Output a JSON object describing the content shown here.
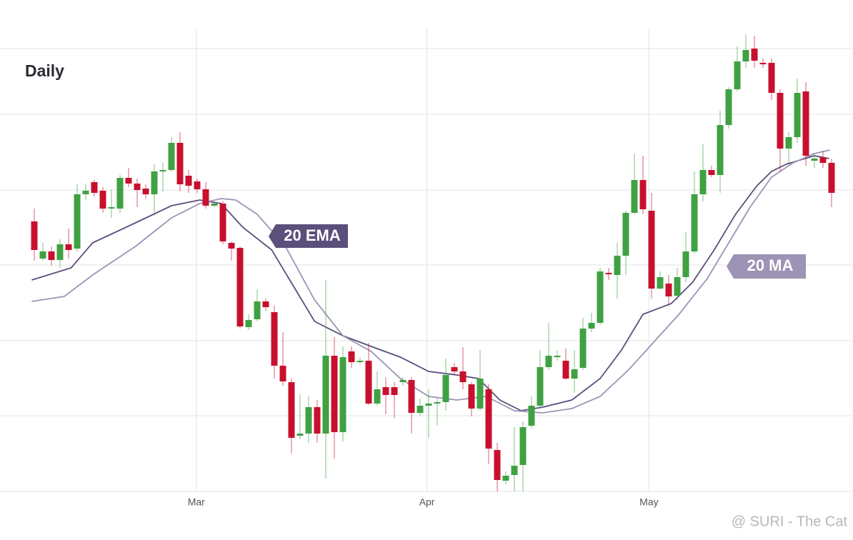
{
  "chart_data": {
    "type": "candlestick",
    "title": "Daily",
    "watermark": "@ SURI - The Cat",
    "up_color": "#3fa142",
    "down_color": "#c8102e",
    "x": [
      0,
      1,
      2,
      3,
      4,
      5,
      6,
      7,
      8,
      9,
      10,
      11,
      12,
      13,
      14,
      15,
      16,
      17,
      18,
      19,
      20,
      21,
      22,
      23,
      24,
      25,
      26,
      27,
      28,
      29,
      30,
      31,
      32,
      33,
      34,
      35,
      36,
      37,
      38,
      39,
      40,
      41,
      42,
      43,
      44,
      45,
      46,
      47,
      48,
      49,
      50,
      51,
      52,
      53,
      54,
      55,
      56,
      57,
      58,
      59,
      60,
      61,
      62,
      63,
      64,
      65,
      66,
      67,
      68,
      69,
      70,
      71,
      72,
      73,
      74,
      75,
      76,
      77,
      78,
      79,
      80,
      81,
      82,
      83,
      84,
      85,
      86,
      87,
      88,
      89,
      90,
      91,
      92,
      93
    ],
    "open": [
      378,
      326,
      336,
      324,
      346,
      340,
      416,
      433,
      421,
      396,
      396,
      439,
      431,
      424,
      416,
      448,
      450,
      488,
      442,
      434,
      423,
      400,
      403,
      348,
      341,
      230,
      241,
      266,
      251,
      176,
      153,
      78,
      81,
      118,
      81,
      190,
      83,
      196,
      181,
      183,
      123,
      146,
      146,
      153,
      156,
      110,
      120,
      123,
      125,
      174,
      168,
      150,
      116,
      143,
      58,
      15,
      23,
      37,
      92,
      120,
      174,
      188,
      183,
      158,
      173,
      228,
      236,
      306,
      303,
      330,
      390,
      436,
      393,
      284,
      291,
      274,
      300,
      336,
      416,
      450,
      443,
      513,
      563,
      602,
      620,
      600,
      600,
      558,
      480,
      496,
      560,
      463,
      468,
      460
    ],
    "high": [
      396,
      348,
      343,
      353,
      368,
      430,
      430,
      436,
      426,
      423,
      443,
      453,
      438,
      430,
      458,
      460,
      496,
      503,
      450,
      438,
      433,
      406,
      406,
      350,
      343,
      248,
      283,
      270,
      260,
      223,
      158,
      136,
      133,
      128,
      296,
      216,
      203,
      203,
      188,
      208,
      168,
      160,
      153,
      160,
      160,
      130,
      143,
      130,
      186,
      180,
      202,
      153,
      198,
      150,
      68,
      28,
      90,
      98,
      133,
      198,
      236,
      198,
      200,
      198,
      243,
      250,
      313,
      313,
      348,
      393,
      473,
      470,
      418,
      308,
      303,
      313,
      363,
      448,
      486,
      456,
      533,
      566,
      623,
      640,
      638,
      606,
      606,
      563,
      503,
      578,
      573,
      473,
      476,
      466
    ],
    "low": [
      323,
      323,
      316,
      313,
      326,
      336,
      408,
      413,
      390,
      383,
      390,
      426,
      398,
      410,
      386,
      420,
      448,
      420,
      418,
      418,
      396,
      398,
      346,
      323,
      228,
      226,
      238,
      253,
      158,
      148,
      53,
      73,
      68,
      68,
      18,
      46,
      70,
      173,
      178,
      121,
      120,
      108,
      103,
      148,
      81,
      106,
      75,
      93,
      113,
      163,
      143,
      105,
      113,
      38,
      0,
      10,
      0,
      0,
      88,
      116,
      170,
      183,
      156,
      138,
      170,
      223,
      233,
      296,
      270,
      303,
      388,
      388,
      270,
      283,
      260,
      268,
      293,
      333,
      406,
      440,
      418,
      508,
      560,
      593,
      593,
      593,
      548,
      448,
      460,
      488,
      456,
      453,
      453,
      398
    ],
    "close": [
      338,
      336,
      324,
      346,
      338,
      416,
      421,
      418,
      396,
      398,
      439,
      431,
      422,
      416,
      448,
      450,
      488,
      430,
      428,
      423,
      400,
      403,
      350,
      340,
      231,
      240,
      266,
      258,
      176,
      154,
      75,
      81,
      118,
      81,
      190,
      83,
      188,
      181,
      183,
      123,
      143,
      135,
      135,
      156,
      110,
      120,
      123,
      125,
      163,
      168,
      153,
      116,
      158,
      60,
      16,
      22,
      36,
      90,
      120,
      174,
      190,
      190,
      158,
      171,
      228,
      236,
      308,
      304,
      330,
      390,
      436,
      395,
      284,
      300,
      273,
      300,
      336,
      416,
      450,
      443,
      513,
      563,
      602,
      618,
      603,
      598,
      558,
      480,
      496,
      558,
      470,
      466,
      460,
      418
    ],
    "xlim": [
      -4,
      95.5
    ],
    "xticks": [
      {
        "value": 18.9,
        "label": "Mar"
      },
      {
        "value": 45.8,
        "label": "Apr"
      },
      {
        "value": 71.7,
        "label": "May"
      }
    ],
    "ylim": [
      0,
      648
    ],
    "yticks": [
      0,
      106,
      211,
      317,
      422,
      528,
      620
    ],
    "grid": true,
    "series": [
      {
        "name": "20 EMA",
        "color": "#5b4f7c",
        "x": [
          -0.3,
          4.3,
          6.8,
          11.8,
          16,
          19.3,
          21.8,
          24.3,
          27.7,
          30.2,
          32.7,
          36,
          39.3,
          42.7,
          46,
          49.3,
          51.8,
          54.3,
          56.8,
          59.3,
          62.7,
          66,
          68.5,
          71,
          74.3,
          76.8,
          79.3,
          81.8,
          84.3,
          86,
          87.7,
          91,
          92.7
        ],
        "values": [
          296,
          313,
          348,
          376,
          400,
          408,
          403,
          370,
          338,
          288,
          238,
          218,
          203,
          188,
          168,
          163,
          158,
          128,
          113,
          118,
          128,
          158,
          198,
          248,
          263,
          293,
          338,
          388,
          428,
          448,
          458,
          470,
          466
        ]
      },
      {
        "name": "20 MA",
        "color": "#9d93b5",
        "x": [
          -0.3,
          3.5,
          6.8,
          11.8,
          16,
          19.3,
          21.8,
          23.5,
          26,
          29.3,
          32.7,
          36,
          39.3,
          42.7,
          46,
          49.3,
          52.7,
          56,
          59.3,
          62.7,
          66,
          69.3,
          71.8,
          75.2,
          78.5,
          81,
          83.5,
          86,
          88.5,
          91,
          92.8
        ],
        "values": [
          266,
          273,
          303,
          343,
          383,
          403,
          410,
          408,
          388,
          343,
          268,
          218,
          196,
          158,
          133,
          128,
          133,
          113,
          110,
          116,
          133,
          170,
          203,
          248,
          298,
          348,
          398,
          440,
          460,
          473,
          478
        ]
      }
    ]
  }
}
